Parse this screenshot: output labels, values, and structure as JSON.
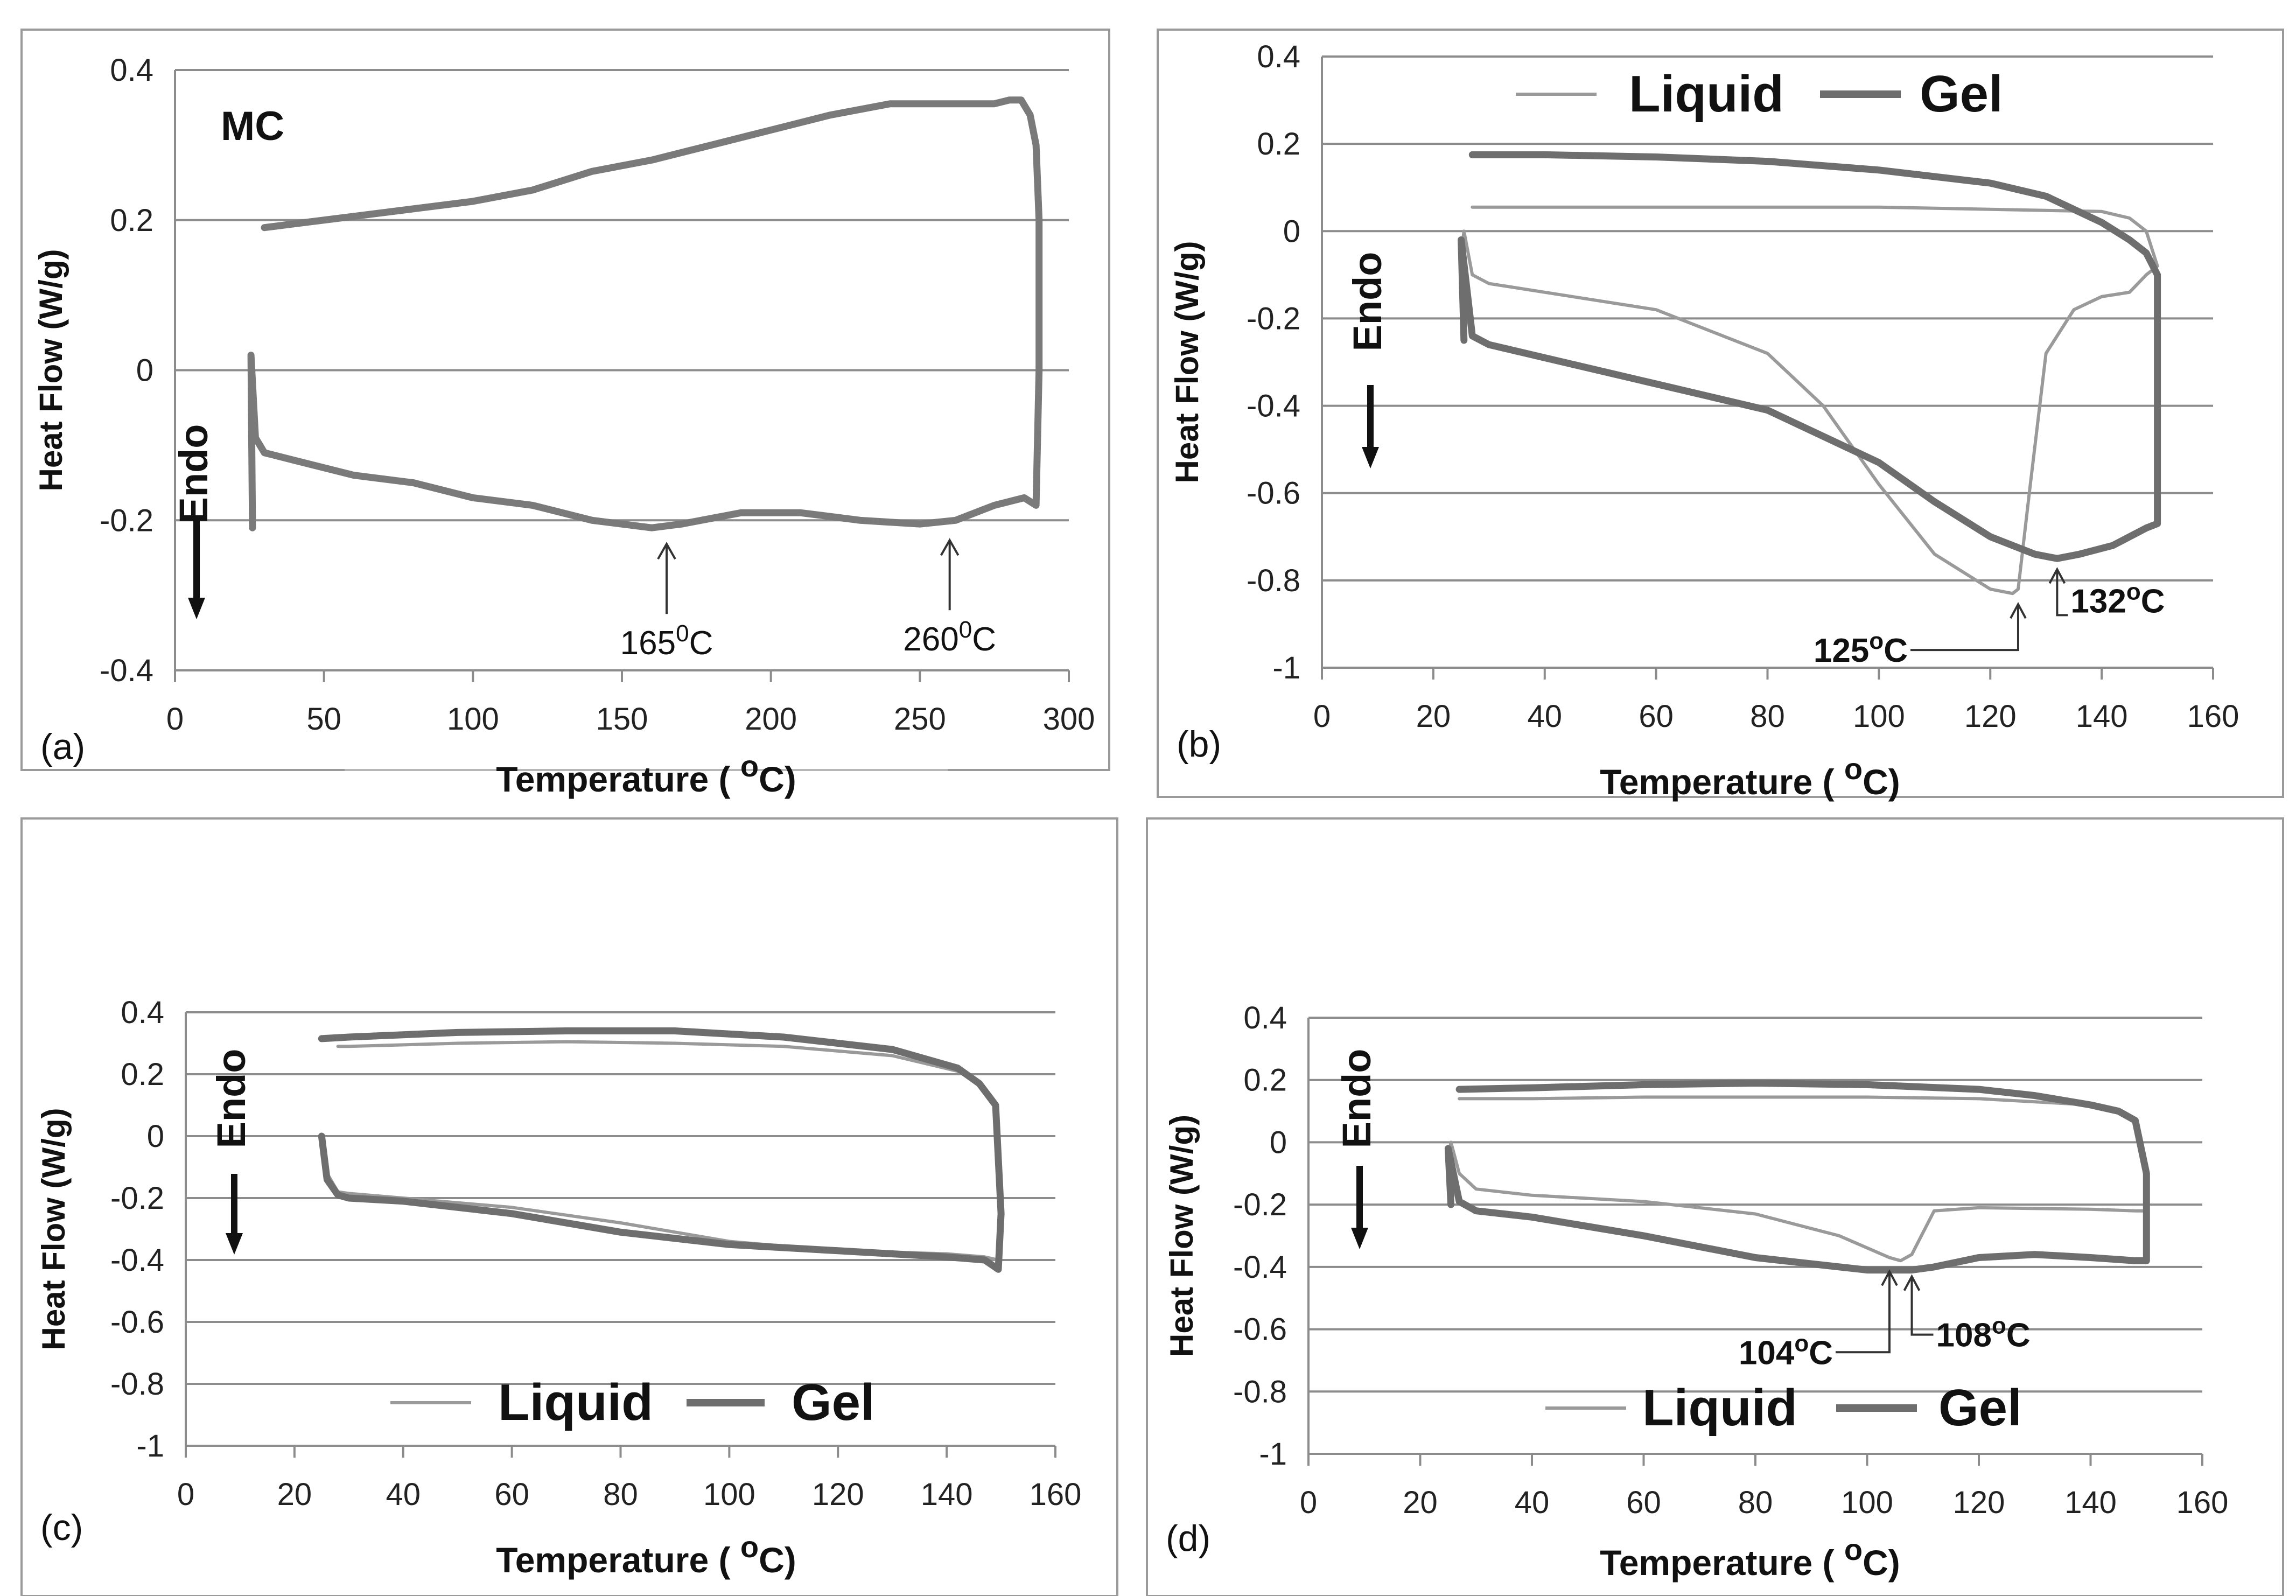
{
  "figure": {
    "label": "Heat flow vs temperature DSC curves"
  },
  "chart_data": [
    {
      "type": "line",
      "panel": "(a)",
      "title": "MC",
      "xlabel": "Temperature ( °C)",
      "xlabel_main": "Temperature ( ",
      "xlabel_deg": "o",
      "xlabel_unit": "C)",
      "ylabel": "Heat Flow (W/g)",
      "xlim": [
        0,
        300
      ],
      "ylim": [
        -0.4,
        0.4
      ],
      "xticks": [
        0,
        50,
        100,
        150,
        200,
        250,
        300
      ],
      "yticks": [
        -0.4,
        -0.2,
        0,
        0.2,
        0.4
      ],
      "ytick_labels": [
        "-0.4",
        "-0.2",
        "0",
        "0.2",
        "0.4"
      ],
      "xtick_labels": [
        "0",
        "50",
        "100",
        "150",
        "200",
        "250",
        "300"
      ],
      "endo_label": "Endo",
      "legend": [],
      "series": [
        {
          "name": "MC",
          "style": "thick",
          "color": "#7a7a7a",
          "x": [
            26,
            25.5,
            27,
            30,
            40,
            60,
            80,
            100,
            120,
            140,
            160,
            170,
            190,
            210,
            230,
            250,
            262,
            275,
            285,
            289,
            290,
            290,
            289,
            287,
            284,
            280,
            275,
            260,
            240,
            220,
            200,
            180,
            160,
            140,
            120,
            100,
            80,
            60,
            40,
            30
          ],
          "y": [
            -0.21,
            0.02,
            -0.09,
            -0.11,
            -0.12,
            -0.14,
            -0.15,
            -0.17,
            -0.18,
            -0.2,
            -0.21,
            -0.205,
            -0.19,
            -0.19,
            -0.2,
            -0.205,
            -0.2,
            -0.18,
            -0.17,
            -0.18,
            0,
            0.2,
            0.3,
            0.34,
            0.36,
            0.36,
            0.355,
            0.355,
            0.355,
            0.34,
            0.32,
            0.3,
            0.28,
            0.265,
            0.24,
            0.225,
            0.215,
            0.205,
            0.195,
            0.19
          ]
        }
      ],
      "annotations": [
        {
          "text_main": "165",
          "sup": "0",
          "unit": "C",
          "x": 165,
          "y": -0.21
        },
        {
          "text_main": "260",
          "sup": "0",
          "unit": "C",
          "x": 260,
          "y": -0.205
        }
      ]
    },
    {
      "type": "line",
      "panel": "(b)",
      "xlabel": "Temperature ( °C)",
      "xlabel_main": "Temperature ( ",
      "xlabel_deg": "o",
      "xlabel_unit": "C)",
      "ylabel": "Heat Flow (W/g)",
      "xlim": [
        0,
        160
      ],
      "ylim": [
        -1,
        0.4
      ],
      "xticks": [
        0,
        20,
        40,
        60,
        80,
        100,
        120,
        140,
        160
      ],
      "yticks": [
        -1,
        -0.8,
        -0.6,
        -0.4,
        -0.2,
        0,
        0.2,
        0.4
      ],
      "ytick_labels": [
        "-1",
        "-0.8",
        "-0.6",
        "-0.4",
        "-0.2",
        "0",
        "0.2",
        "0.4"
      ],
      "xtick_labels": [
        "0",
        "20",
        "40",
        "60",
        "80",
        "100",
        "120",
        "140",
        "160"
      ],
      "endo_label": "Endo",
      "legend": [
        "Liquid",
        "Gel"
      ],
      "series": [
        {
          "name": "Liquid",
          "style": "thin",
          "color": "#9a9a9a",
          "x": [
            25,
            25.5,
            27,
            30,
            40,
            60,
            80,
            90,
            100,
            110,
            120,
            124,
            125,
            127,
            130,
            135,
            140,
            145,
            148,
            150,
            150,
            148,
            145,
            140,
            120,
            100,
            80,
            60,
            40,
            27
          ],
          "y": [
            -0.05,
            0,
            -0.1,
            -0.12,
            -0.14,
            -0.18,
            -0.28,
            -0.4,
            -0.58,
            -0.74,
            -0.82,
            -0.83,
            -0.82,
            -0.6,
            -0.28,
            -0.18,
            -0.15,
            -0.14,
            -0.1,
            -0.08,
            -0.08,
            0.0,
            0.03,
            0.045,
            0.05,
            0.055,
            0.055,
            0.055,
            0.055,
            0.055
          ]
        },
        {
          "name": "Gel",
          "style": "thick",
          "color": "#6e6e6e",
          "x": [
            25.5,
            25,
            27,
            30,
            40,
            60,
            80,
            100,
            110,
            120,
            128,
            132,
            136,
            142,
            148,
            150,
            150,
            148,
            145,
            140,
            130,
            120,
            100,
            80,
            60,
            40,
            27
          ],
          "y": [
            -0.25,
            -0.02,
            -0.24,
            -0.26,
            -0.29,
            -0.35,
            -0.41,
            -0.53,
            -0.62,
            -0.7,
            -0.74,
            -0.75,
            -0.74,
            -0.72,
            -0.68,
            -0.67,
            -0.1,
            -0.05,
            -0.02,
            0.02,
            0.08,
            0.11,
            0.14,
            0.16,
            0.17,
            0.175,
            0.175
          ]
        }
      ],
      "annotations": [
        {
          "text_main": "125",
          "sup": "o",
          "unit": "C",
          "x": 125,
          "y": -0.83
        },
        {
          "text_main": "132",
          "sup": "o",
          "unit": "C",
          "x": 132,
          "y": -0.75
        }
      ]
    },
    {
      "type": "line",
      "panel": "(c)",
      "xlabel": "Temperature ( °C)",
      "xlabel_main": "Temperature ( ",
      "xlabel_deg": "o",
      "xlabel_unit": "C)",
      "ylabel": "Heat Flow (W/g)",
      "xlim": [
        0,
        160
      ],
      "ylim": [
        -1,
        0.4
      ],
      "xticks": [
        0,
        20,
        40,
        60,
        80,
        100,
        120,
        140,
        160
      ],
      "yticks": [
        -1,
        -0.8,
        -0.6,
        -0.4,
        -0.2,
        0,
        0.2,
        0.4
      ],
      "ytick_labels": [
        "-1",
        "-0.8",
        "-0.6",
        "-0.4",
        "-0.2",
        "0",
        "0.2",
        "0.4"
      ],
      "xtick_labels": [
        "0",
        "20",
        "40",
        "60",
        "80",
        "100",
        "120",
        "140",
        "160"
      ],
      "endo_label": "Endo",
      "legend": [
        "Liquid",
        "Gel"
      ],
      "series": [
        {
          "name": "Liquid",
          "style": "thin",
          "color": "#9a9a9a",
          "x": [
            25,
            26,
            28,
            30,
            40,
            60,
            80,
            100,
            120,
            140,
            147,
            149.5,
            150,
            149,
            146,
            142,
            130,
            110,
            90,
            70,
            50,
            30,
            28
          ],
          "y": [
            0,
            -0.12,
            -0.18,
            -0.185,
            -0.2,
            -0.23,
            -0.28,
            -0.34,
            -0.37,
            -0.38,
            -0.39,
            -0.4,
            -0.2,
            0.1,
            0.17,
            0.21,
            0.26,
            0.29,
            0.3,
            0.305,
            0.3,
            0.29,
            0.29
          ]
        },
        {
          "name": "Gel",
          "style": "thick",
          "color": "#6e6e6e",
          "x": [
            25,
            26,
            28,
            30,
            40,
            60,
            80,
            100,
            120,
            140,
            147,
            149.5,
            150,
            149,
            146,
            142,
            130,
            110,
            90,
            70,
            50,
            30,
            25
          ],
          "y": [
            0,
            -0.14,
            -0.19,
            -0.2,
            -0.21,
            -0.25,
            -0.31,
            -0.35,
            -0.37,
            -0.39,
            -0.4,
            -0.43,
            -0.25,
            0.1,
            0.17,
            0.22,
            0.28,
            0.32,
            0.34,
            0.34,
            0.335,
            0.32,
            0.315
          ]
        }
      ],
      "annotations": []
    },
    {
      "type": "line",
      "panel": "(d)",
      "xlabel": "Temperature ( °C)",
      "xlabel_main": "Temperature ( ",
      "xlabel_deg": "o",
      "xlabel_unit": "C)",
      "ylabel": "Heat Flow (W/g)",
      "xlim": [
        0,
        160
      ],
      "ylim": [
        -1,
        0.4
      ],
      "xticks": [
        0,
        20,
        40,
        60,
        80,
        100,
        120,
        140,
        160
      ],
      "yticks": [
        -1,
        -0.8,
        -0.6,
        -0.4,
        -0.2,
        0,
        0.2,
        0.4
      ],
      "ytick_labels": [
        "-1",
        "-0.8",
        "-0.6",
        "-0.4",
        "-0.2",
        "0",
        "0.2",
        "0.4"
      ],
      "xtick_labels": [
        "0",
        "20",
        "40",
        "60",
        "80",
        "100",
        "120",
        "140",
        "160"
      ],
      "endo_label": "Endo",
      "legend": [
        "Liquid",
        "Gel"
      ],
      "series": [
        {
          "name": "Liquid",
          "style": "thin",
          "color": "#9a9a9a",
          "x": [
            25,
            25.5,
            27,
            30,
            40,
            60,
            80,
            95,
            104,
            106,
            108,
            112,
            120,
            140,
            148,
            150,
            150,
            148,
            145,
            140,
            120,
            100,
            80,
            60,
            40,
            27
          ],
          "y": [
            -0.05,
            0.0,
            -0.1,
            -0.15,
            -0.17,
            -0.19,
            -0.23,
            -0.3,
            -0.37,
            -0.38,
            -0.36,
            -0.22,
            -0.21,
            -0.215,
            -0.22,
            -0.22,
            -0.1,
            0.07,
            0.1,
            0.12,
            0.14,
            0.145,
            0.145,
            0.145,
            0.14,
            0.14
          ]
        },
        {
          "name": "Gel",
          "style": "thick",
          "color": "#6e6e6e",
          "x": [
            25.5,
            25,
            27,
            30,
            40,
            60,
            80,
            100,
            108,
            112,
            120,
            130,
            140,
            148,
            150,
            150,
            148,
            145,
            140,
            130,
            120,
            100,
            80,
            60,
            40,
            27
          ],
          "y": [
            -0.2,
            -0.02,
            -0.19,
            -0.22,
            -0.24,
            -0.3,
            -0.37,
            -0.41,
            -0.41,
            -0.4,
            -0.37,
            -0.36,
            -0.37,
            -0.38,
            -0.38,
            -0.1,
            0.07,
            0.1,
            0.12,
            0.15,
            0.17,
            0.185,
            0.19,
            0.185,
            0.175,
            0.17
          ]
        }
      ],
      "annotations": [
        {
          "text_main": "104",
          "sup": "o",
          "unit": "C",
          "x": 104,
          "y": -0.38
        },
        {
          "text_main": "108",
          "sup": "o",
          "unit": "C",
          "x": 108,
          "y": -0.41
        }
      ]
    }
  ]
}
